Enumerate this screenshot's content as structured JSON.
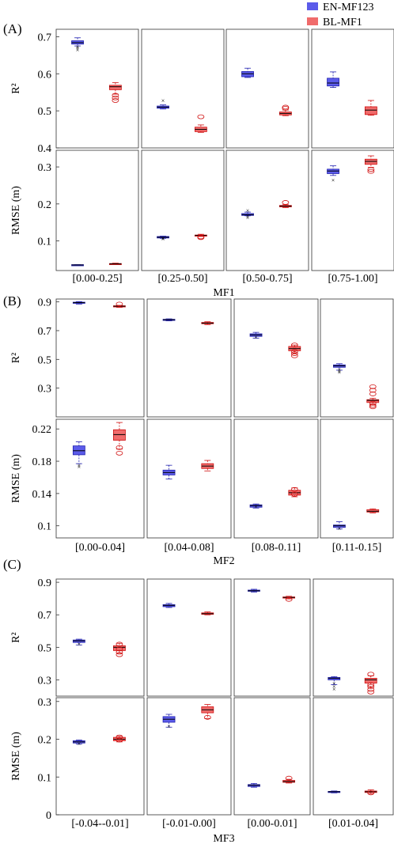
{
  "colors": {
    "en": "#5b5bea",
    "bl": "#f06b6b",
    "en_stroke": "#2020b0",
    "bl_stroke": "#d01010"
  },
  "legend": [
    {
      "label": "EN-MF123",
      "series": "en"
    },
    {
      "label": "BL-MF1",
      "series": "bl"
    }
  ],
  "chart_data": [
    {
      "type": "boxplot",
      "panel_label": "(A)",
      "xlabel": "MF1",
      "categories": [
        "[0.00-0.25]",
        "[0.25-0.50]",
        "[0.50-0.75]",
        "[0.75-1.00]"
      ],
      "rows": [
        {
          "ylabel": "R²",
          "ylim": [
            0.4,
            0.72
          ],
          "yticks": [
            0.4,
            0.5,
            0.6,
            0.7
          ],
          "boxes": [
            [
              {
                "series": "en",
                "min": 0.675,
                "q1": 0.68,
                "median": 0.684,
                "q3": 0.689,
                "max": 0.697,
                "outliers": [
                  0.665,
                  0.67,
                  0.673
                ]
              },
              {
                "series": "bl",
                "min": 0.545,
                "q1": 0.557,
                "median": 0.565,
                "q3": 0.569,
                "max": 0.576,
                "outliers": [
                  0.528,
                  0.535,
                  0.542
                ]
              }
            ],
            [
              {
                "series": "en",
                "min": 0.505,
                "q1": 0.507,
                "median": 0.51,
                "q3": 0.513,
                "max": 0.516,
                "outliers": [
                  0.528
                ]
              },
              {
                "series": "bl",
                "min": 0.442,
                "q1": 0.444,
                "median": 0.45,
                "q3": 0.456,
                "max": 0.462,
                "outliers": [
                  0.484
                ]
              }
            ],
            [
              {
                "series": "en",
                "min": 0.59,
                "q1": 0.592,
                "median": 0.6,
                "q3": 0.606,
                "max": 0.615,
                "outliers": []
              },
              {
                "series": "bl",
                "min": 0.487,
                "q1": 0.489,
                "median": 0.493,
                "q3": 0.497,
                "max": 0.502,
                "outliers": [
                  0.507,
                  0.51
                ]
              }
            ],
            [
              {
                "series": "en",
                "min": 0.563,
                "q1": 0.567,
                "median": 0.575,
                "q3": 0.588,
                "max": 0.605,
                "outliers": []
              },
              {
                "series": "bl",
                "min": 0.488,
                "q1": 0.49,
                "median": 0.502,
                "q3": 0.511,
                "max": 0.528,
                "outliers": []
              }
            ]
          ]
        },
        {
          "ylabel": "RMSE (m)",
          "ylim": [
            0.02,
            0.345
          ],
          "yticks": [
            0.1,
            0.2,
            0.3
          ],
          "boxes": [
            [
              {
                "series": "en",
                "min": 0.034,
                "q1": 0.034,
                "median": 0.035,
                "q3": 0.036,
                "max": 0.036,
                "outliers": []
              },
              {
                "series": "bl",
                "min": 0.036,
                "q1": 0.037,
                "median": 0.038,
                "q3": 0.039,
                "max": 0.04,
                "outliers": []
              }
            ],
            [
              {
                "series": "en",
                "min": 0.107,
                "q1": 0.108,
                "median": 0.11,
                "q3": 0.112,
                "max": 0.113,
                "outliers": [
                  0.106,
                  0.108
                ]
              },
              {
                "series": "bl",
                "min": 0.112,
                "q1": 0.113,
                "median": 0.115,
                "q3": 0.116,
                "max": 0.118,
                "outliers": [
                  0.109,
                  0.111
                ]
              }
            ],
            [
              {
                "series": "en",
                "min": 0.168,
                "q1": 0.169,
                "median": 0.171,
                "q3": 0.174,
                "max": 0.178,
                "outliers": [
                  0.163,
                  0.167,
                  0.183
                ]
              },
              {
                "series": "bl",
                "min": 0.19,
                "q1": 0.192,
                "median": 0.194,
                "q3": 0.196,
                "max": 0.198,
                "outliers": [
                  0.204
                ]
              }
            ],
            [
              {
                "series": "en",
                "min": 0.277,
                "q1": 0.282,
                "median": 0.289,
                "q3": 0.294,
                "max": 0.303,
                "outliers": [
                  0.265
                ]
              },
              {
                "series": "bl",
                "min": 0.299,
                "q1": 0.307,
                "median": 0.315,
                "q3": 0.321,
                "max": 0.33,
                "outliers": [
                  0.288,
                  0.293
                ]
              }
            ]
          ]
        }
      ]
    },
    {
      "type": "boxplot",
      "panel_label": "(B)",
      "xlabel": "MF2",
      "categories": [
        "[0.00-0.04]",
        "[0.04-0.08]",
        "[0.08-0.11]",
        "[0.11-0.15]"
      ],
      "rows": [
        {
          "ylabel": "R²",
          "ylim": [
            0.1,
            0.92
          ],
          "yticks": [
            0.3,
            0.5,
            0.7,
            0.9
          ],
          "boxes": [
            [
              {
                "series": "en",
                "min": 0.885,
                "q1": 0.89,
                "median": 0.895,
                "q3": 0.898,
                "max": 0.902,
                "outliers": []
              },
              {
                "series": "bl",
                "min": 0.862,
                "q1": 0.867,
                "median": 0.87,
                "q3": 0.873,
                "max": 0.876,
                "outliers": [
                  0.885
                ]
              }
            ],
            [
              {
                "series": "en",
                "min": 0.768,
                "q1": 0.772,
                "median": 0.776,
                "q3": 0.779,
                "max": 0.782,
                "outliers": []
              },
              {
                "series": "bl",
                "min": 0.742,
                "q1": 0.748,
                "median": 0.752,
                "q3": 0.757,
                "max": 0.762,
                "outliers": []
              }
            ],
            [
              {
                "series": "en",
                "min": 0.648,
                "q1": 0.66,
                "median": 0.67,
                "q3": 0.678,
                "max": 0.688,
                "outliers": [
                  0.655
                ]
              },
              {
                "series": "bl",
                "min": 0.545,
                "q1": 0.56,
                "median": 0.575,
                "q3": 0.59,
                "max": 0.6,
                "outliers": [
                  0.525,
                  0.54,
                  0.555,
                  0.6
                ]
              }
            ],
            [
              {
                "series": "en",
                "min": 0.425,
                "q1": 0.445,
                "median": 0.455,
                "q3": 0.462,
                "max": 0.47,
                "outliers": [
                  0.41,
                  0.42,
                  0.43
                ]
              },
              {
                "series": "bl",
                "min": 0.185,
                "q1": 0.2,
                "median": 0.215,
                "q3": 0.22,
                "max": 0.23,
                "outliers": [
                  0.17,
                  0.18,
                  0.195,
                  0.26,
                  0.285,
                  0.31
                ]
              }
            ]
          ]
        },
        {
          "ylabel": "RMSE (m)",
          "ylim": [
            0.085,
            0.232
          ],
          "yticks": [
            0.1,
            0.14,
            0.18,
            0.22
          ],
          "boxes": [
            [
              {
                "series": "en",
                "min": 0.177,
                "q1": 0.188,
                "median": 0.193,
                "q3": 0.199,
                "max": 0.204,
                "outliers": [
                  0.173,
                  0.175
                ]
              },
              {
                "series": "bl",
                "min": 0.195,
                "q1": 0.206,
                "median": 0.213,
                "q3": 0.219,
                "max": 0.228,
                "outliers": [
                  0.19,
                  0.197
                ]
              }
            ],
            [
              {
                "series": "en",
                "min": 0.158,
                "q1": 0.163,
                "median": 0.166,
                "q3": 0.169,
                "max": 0.175,
                "outliers": []
              },
              {
                "series": "bl",
                "min": 0.168,
                "q1": 0.171,
                "median": 0.174,
                "q3": 0.177,
                "max": 0.181,
                "outliers": []
              }
            ],
            [
              {
                "series": "en",
                "min": 0.122,
                "q1": 0.123,
                "median": 0.125,
                "q3": 0.126,
                "max": 0.127,
                "outliers": [
                  0.124
                ]
              },
              {
                "series": "bl",
                "min": 0.136,
                "q1": 0.138,
                "median": 0.141,
                "q3": 0.144,
                "max": 0.147,
                "outliers": [
                  0.139,
                  0.145
                ]
              }
            ],
            [
              {
                "series": "en",
                "min": 0.096,
                "q1": 0.098,
                "median": 0.1,
                "q3": 0.101,
                "max": 0.105,
                "outliers": [
                  0.097
                ]
              },
              {
                "series": "bl",
                "min": 0.116,
                "q1": 0.117,
                "median": 0.118,
                "q3": 0.12,
                "max": 0.121,
                "outliers": []
              }
            ]
          ]
        }
      ]
    },
    {
      "type": "boxplot",
      "panel_label": "(C)",
      "xlabel": "MF3",
      "categories": [
        "[-0.04--0.01]",
        "[-0.01-0.00]",
        "[0.00-0.01]",
        "[0.01-0.04]"
      ],
      "rows": [
        {
          "ylabel": "R²",
          "ylim": [
            0.2,
            0.92
          ],
          "yticks": [
            0.3,
            0.5,
            0.7,
            0.9
          ],
          "boxes": [
            [
              {
                "series": "en",
                "min": 0.515,
                "q1": 0.53,
                "median": 0.54,
                "q3": 0.545,
                "max": 0.55,
                "outliers": [
                  0.52
                ]
              },
              {
                "series": "bl",
                "min": 0.465,
                "q1": 0.48,
                "median": 0.5,
                "q3": 0.51,
                "max": 0.525,
                "outliers": [
                  0.455,
                  0.47,
                  0.49,
                  0.52
                ]
              }
            ],
            [
              {
                "series": "en",
                "min": 0.745,
                "q1": 0.75,
                "median": 0.758,
                "q3": 0.763,
                "max": 0.77,
                "outliers": []
              },
              {
                "series": "bl",
                "min": 0.7,
                "q1": 0.703,
                "median": 0.707,
                "q3": 0.712,
                "max": 0.718,
                "outliers": []
              }
            ],
            [
              {
                "series": "en",
                "min": 0.84,
                "q1": 0.845,
                "median": 0.848,
                "q3": 0.852,
                "max": 0.857,
                "outliers": []
              },
              {
                "series": "bl",
                "min": 0.798,
                "q1": 0.803,
                "median": 0.807,
                "q3": 0.81,
                "max": 0.814,
                "outliers": [
                  0.795
                ]
              }
            ],
            [
              {
                "series": "en",
                "min": 0.27,
                "q1": 0.3,
                "median": 0.31,
                "q3": 0.315,
                "max": 0.32,
                "outliers": [
                  0.245,
                  0.26,
                  0.28
                ]
              },
              {
                "series": "bl",
                "min": 0.25,
                "q1": 0.28,
                "median": 0.3,
                "q3": 0.31,
                "max": 0.325,
                "outliers": [
                  0.225,
                  0.24,
                  0.26,
                  0.27,
                  0.335
                ]
              }
            ]
          ]
        },
        {
          "ylabel": "RMSE (m)",
          "ylim": [
            0,
            0.31
          ],
          "yticks": [
            0,
            0.1,
            0.2,
            0.3
          ],
          "boxes": [
            [
              {
                "series": "en",
                "min": 0.187,
                "q1": 0.19,
                "median": 0.193,
                "q3": 0.196,
                "max": 0.198,
                "outliers": [
                  0.189
                ]
              },
              {
                "series": "bl",
                "min": 0.193,
                "q1": 0.196,
                "median": 0.2,
                "q3": 0.205,
                "max": 0.208,
                "outliers": [
                  0.198,
                  0.206
                ]
              }
            ],
            [
              {
                "series": "en",
                "min": 0.232,
                "q1": 0.245,
                "median": 0.253,
                "q3": 0.26,
                "max": 0.266,
                "outliers": [
                  0.235
                ]
              },
              {
                "series": "bl",
                "min": 0.255,
                "q1": 0.27,
                "median": 0.278,
                "q3": 0.286,
                "max": 0.292,
                "outliers": [
                  0.258
                ]
              }
            ],
            [
              {
                "series": "en",
                "min": 0.073,
                "q1": 0.075,
                "median": 0.078,
                "q3": 0.08,
                "max": 0.083,
                "outliers": []
              },
              {
                "series": "bl",
                "min": 0.084,
                "q1": 0.086,
                "median": 0.088,
                "q3": 0.091,
                "max": 0.094,
                "outliers": [
                  0.097
                ]
              }
            ],
            [
              {
                "series": "en",
                "min": 0.058,
                "q1": 0.059,
                "median": 0.061,
                "q3": 0.062,
                "max": 0.063,
                "outliers": []
              },
              {
                "series": "bl",
                "min": 0.056,
                "q1": 0.059,
                "median": 0.061,
                "q3": 0.063,
                "max": 0.066,
                "outliers": [
                  0.058
                ]
              }
            ]
          ]
        }
      ]
    }
  ]
}
